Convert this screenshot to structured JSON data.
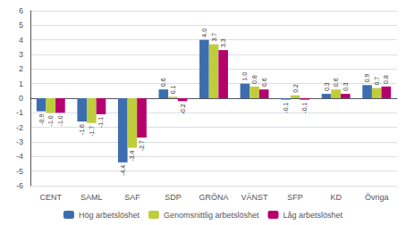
{
  "chart_data": {
    "type": "bar",
    "categories": [
      "CENT",
      "SAML",
      "SAF",
      "SDP",
      "GRÖNA",
      "VÄNST",
      "SFP",
      "KD",
      "Övriga"
    ],
    "series": [
      {
        "name": "Hög arbetslöshet",
        "color": "#3C6EAF",
        "values": [
          -0.9,
          -1.6,
          -4.4,
          0.6,
          4.0,
          1.0,
          -0.1,
          0.3,
          0.9
        ],
        "value_labels": [
          "-0.9",
          "-1.6",
          "-4.4",
          "0.6",
          "4.0",
          "1.0",
          "-0.1",
          "0.3",
          "0.9"
        ]
      },
      {
        "name": "Genomsnittlig arbetslöshet",
        "color": "#BFCD3D",
        "values": [
          -1.0,
          -1.7,
          -3.4,
          0.1,
          3.7,
          0.8,
          0.2,
          0.6,
          0.7
        ],
        "value_labels": [
          "-1.0",
          "-1.7",
          "-3.4",
          "0.1",
          "3.7",
          "0.8",
          "0.2",
          "0.6",
          "0.7"
        ]
      },
      {
        "name": "Låg arbetslöshet",
        "color": "#B5006E",
        "values": [
          -1.0,
          -1.1,
          -2.7,
          -0.2,
          3.3,
          0.6,
          -0.1,
          0.3,
          0.8
        ],
        "value_labels": [
          "-1.0",
          "-1.1",
          "-2.7",
          "-0.2",
          "3.3",
          "0.6",
          "-0.1",
          "0.3",
          "0.8"
        ]
      }
    ],
    "ylim": [
      -6,
      6
    ],
    "yticks": [
      -6,
      -5,
      -4,
      -3,
      -2,
      -1,
      0,
      1,
      2,
      3,
      4,
      5,
      6
    ],
    "grid": true,
    "legend": "bottom",
    "data_labels": true
  }
}
